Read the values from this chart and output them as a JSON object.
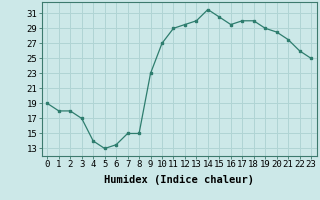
{
  "x": [
    0,
    1,
    2,
    3,
    4,
    5,
    6,
    7,
    8,
    9,
    10,
    11,
    12,
    13,
    14,
    15,
    16,
    17,
    18,
    19,
    20,
    21,
    22,
    23
  ],
  "y": [
    19,
    18,
    18,
    17,
    14,
    13,
    13.5,
    15,
    15,
    23,
    27,
    29,
    29.5,
    30,
    31.5,
    30.5,
    29.5,
    30,
    30,
    29,
    28.5,
    27.5,
    26,
    25
  ],
  "line_color": "#2e7d6e",
  "marker": "s",
  "marker_size": 2,
  "xlabel": "Humidex (Indice chaleur)",
  "ylabel_ticks": [
    13,
    15,
    17,
    19,
    21,
    23,
    25,
    27,
    29,
    31
  ],
  "ylim": [
    12,
    32.5
  ],
  "xlim": [
    -0.5,
    23.5
  ],
  "xticks": [
    0,
    1,
    2,
    3,
    4,
    5,
    6,
    7,
    8,
    9,
    10,
    11,
    12,
    13,
    14,
    15,
    16,
    17,
    18,
    19,
    20,
    21,
    22,
    23
  ],
  "bg_color": "#cce8e8",
  "grid_color": "#b0d4d4",
  "xlabel_fontsize": 7.5,
  "tick_fontsize": 6.5
}
